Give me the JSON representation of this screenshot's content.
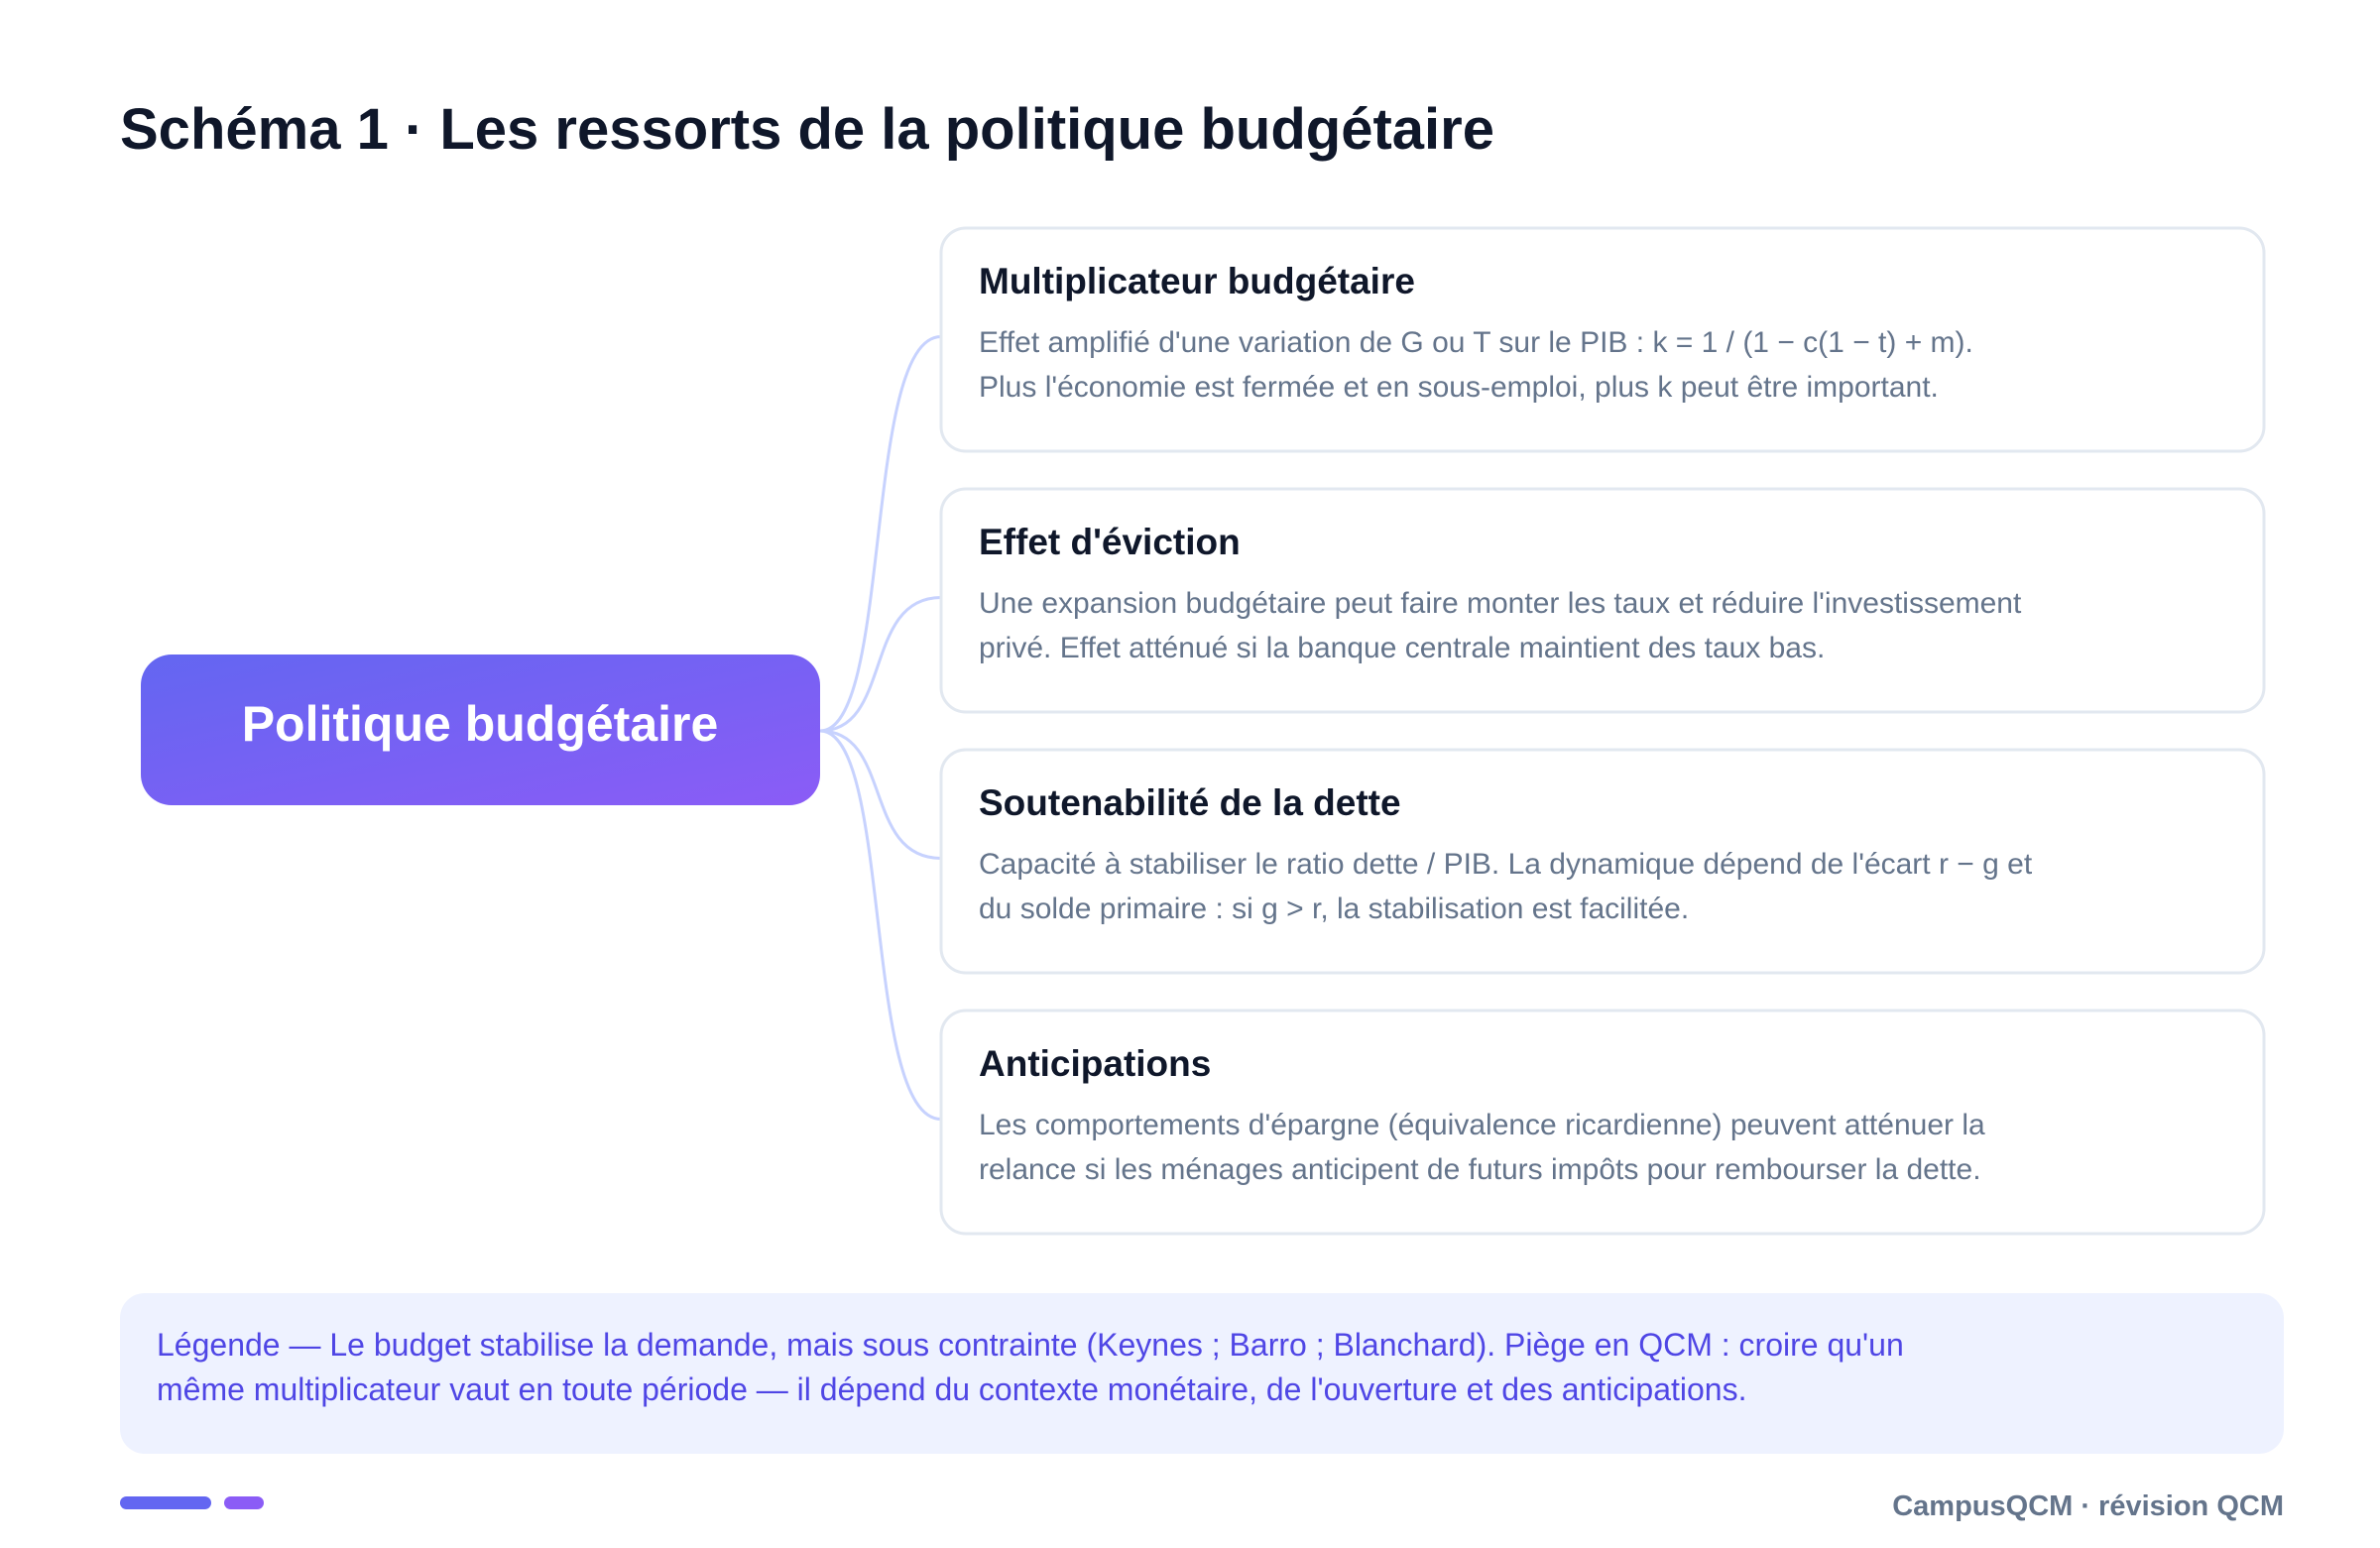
{
  "title": "Schéma 1 · Les ressorts de la politique budgétaire",
  "center": "Politique budgétaire",
  "cards": [
    {
      "title": "Multiplicateur budgétaire",
      "lines": [
        "Effet amplifié d'une variation de G ou T sur le PIB : k = 1 / (1 − c(1 − t) + m).",
        "Plus l'économie est fermée et en sous-emploi, plus k peut être important."
      ]
    },
    {
      "title": "Effet d'éviction",
      "lines": [
        "Une expansion budgétaire peut faire monter les taux et réduire l'investissement",
        "privé. Effet atténué si la banque centrale maintient des taux bas."
      ]
    },
    {
      "title": "Soutenabilité de la dette",
      "lines": [
        "Capacité à stabiliser le ratio dette / PIB. La dynamique dépend de l'écart r − g et",
        "du solde primaire : si g > r, la stabilisation est facilitée."
      ]
    },
    {
      "title": "Anticipations",
      "lines": [
        "Les comportements d'épargne (équivalence ricardienne) peuvent atténuer la",
        "relance si les ménages anticipent de futurs impôts pour rembourser la dette."
      ]
    }
  ],
  "legend": [
    "Légende — Le budget stabilise la demande, mais sous contrainte (Keynes ; Barro ; Blanchard). Piège en QCM : croire qu'un",
    "même multiplicateur vaut en toute période — il dépend du contexte monétaire, de l'ouverture et des anticipations."
  ],
  "footer": "CampusQCM · révision QCM"
}
